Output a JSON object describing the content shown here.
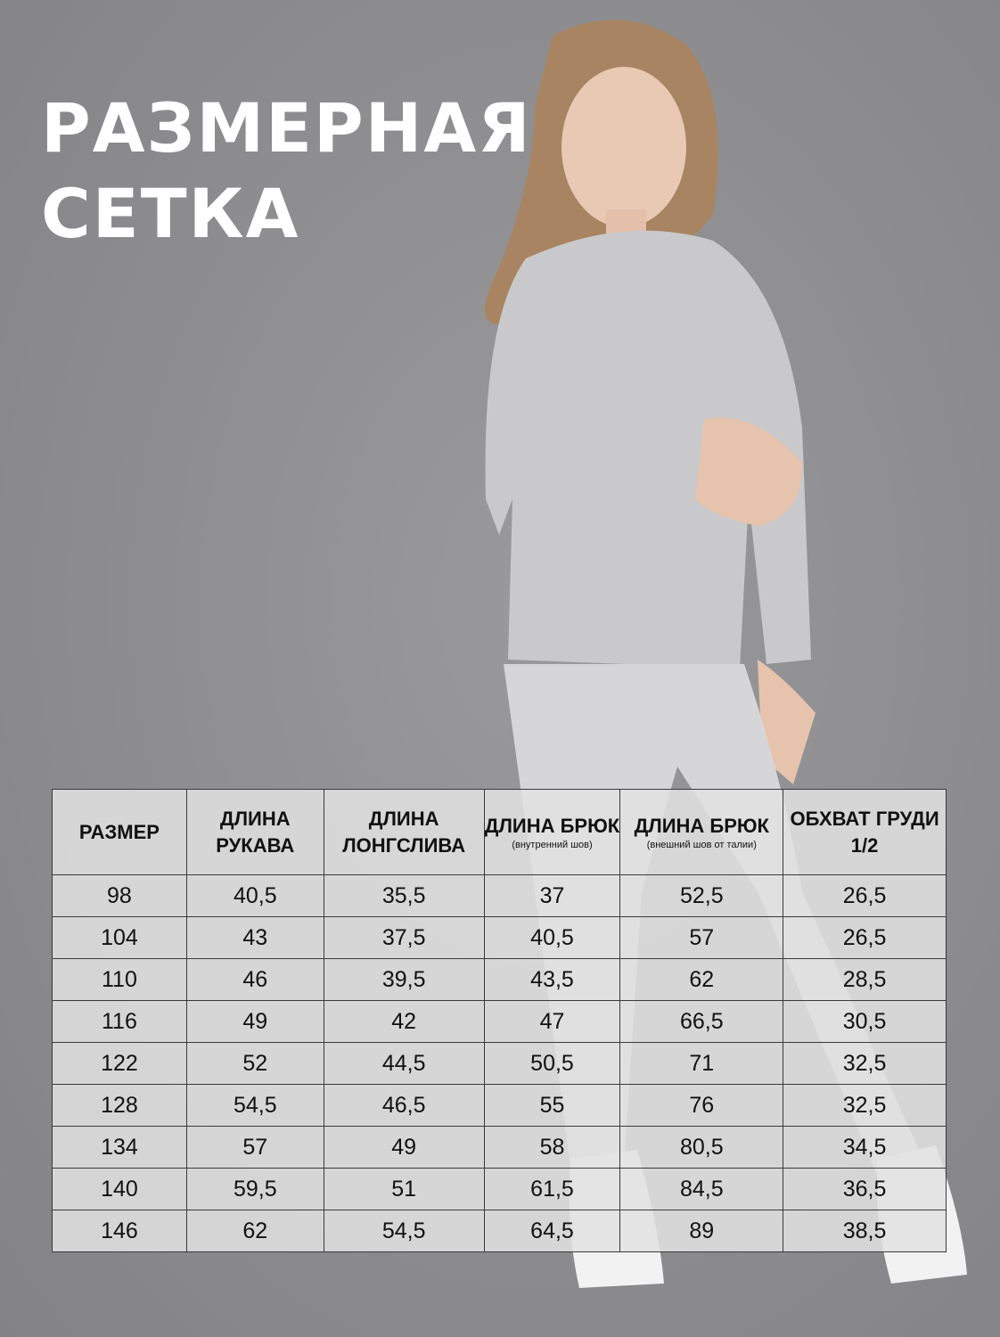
{
  "title": {
    "line1": "РАЗМЕРНАЯ",
    "line2": "СЕТКА"
  },
  "table": {
    "headers": [
      {
        "main": "РАЗМЕР",
        "sub": ""
      },
      {
        "main": "ДЛИНА РУКАВА",
        "sub": ""
      },
      {
        "main": "ДЛИНА ЛОНГСЛИВА",
        "sub": ""
      },
      {
        "main": "ДЛИНА БРЮК",
        "sub": "(внутренний шов)"
      },
      {
        "main": "ДЛИНА БРЮК",
        "sub": "(внешний шов от талии)"
      },
      {
        "main": "ОБХВАТ ГРУДИ 1/2",
        "sub": ""
      }
    ],
    "rows": [
      [
        "98",
        "40,5",
        "35,5",
        "37",
        "52,5",
        "26,5"
      ],
      [
        "104",
        "43",
        "37,5",
        "40,5",
        "57",
        "26,5"
      ],
      [
        "110",
        "46",
        "39,5",
        "43,5",
        "62",
        "28,5"
      ],
      [
        "116",
        "49",
        "42",
        "47",
        "66,5",
        "30,5"
      ],
      [
        "122",
        "52",
        "44,5",
        "50,5",
        "71",
        "32,5"
      ],
      [
        "128",
        "54,5",
        "46,5",
        "55",
        "76",
        "32,5"
      ],
      [
        "134",
        "57",
        "49",
        "58",
        "80,5",
        "34,5"
      ],
      [
        "140",
        "59,5",
        "51",
        "61,5",
        "84,5",
        "36,5"
      ],
      [
        "146",
        "62",
        "54,5",
        "64,5",
        "89",
        "38,5"
      ]
    ]
  },
  "colors": {
    "background": "#8e8e90",
    "title": "#ffffff",
    "table_border": "#3a3a3a"
  }
}
